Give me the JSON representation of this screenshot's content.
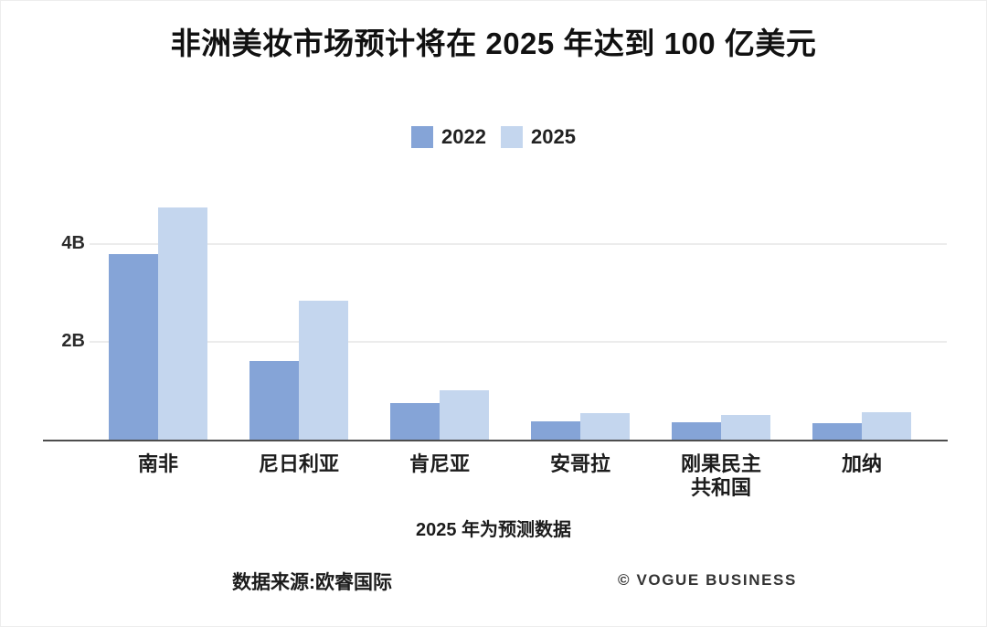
{
  "page": {
    "title": "非洲美妆市场预计将在 2025 年达到 100 亿美元",
    "note": "2025 年为预测数据",
    "source": "数据来源:欧睿国际",
    "credit": "© VOGUE BUSINESS"
  },
  "colors": {
    "series_2022": "#85a4d7",
    "series_2025": "#c4d6ee",
    "gridline": "#ececec",
    "axis_line": "#4d4d4d",
    "text": "#1a1a1a"
  },
  "chart_data": {
    "type": "bar",
    "title": "非洲美妆市场预计将在 2025 年达到 100 亿美元",
    "subtitle": "2025 年为预测数据",
    "unit": "USD billions",
    "categories": [
      "南非",
      "尼日利亚",
      "肯尼亚",
      "安哥拉",
      "刚果民主\n共和国",
      "加纳"
    ],
    "series": [
      {
        "name": "2022",
        "color": "#85a4d7",
        "values": [
          3.8,
          1.6,
          0.75,
          0.38,
          0.36,
          0.34
        ]
      },
      {
        "name": "2025",
        "color": "#c4d6ee",
        "values": [
          4.75,
          2.85,
          1.0,
          0.55,
          0.5,
          0.57
        ]
      }
    ],
    "y_ticks": [
      {
        "value": 4,
        "label": "4B"
      },
      {
        "value": 2,
        "label": "2B"
      }
    ],
    "ylim": [
      0,
      5
    ],
    "grid": true,
    "legend_position": "top-center",
    "source": "数据来源:欧睿国际",
    "credit": "© VOGUE BUSINESS"
  }
}
